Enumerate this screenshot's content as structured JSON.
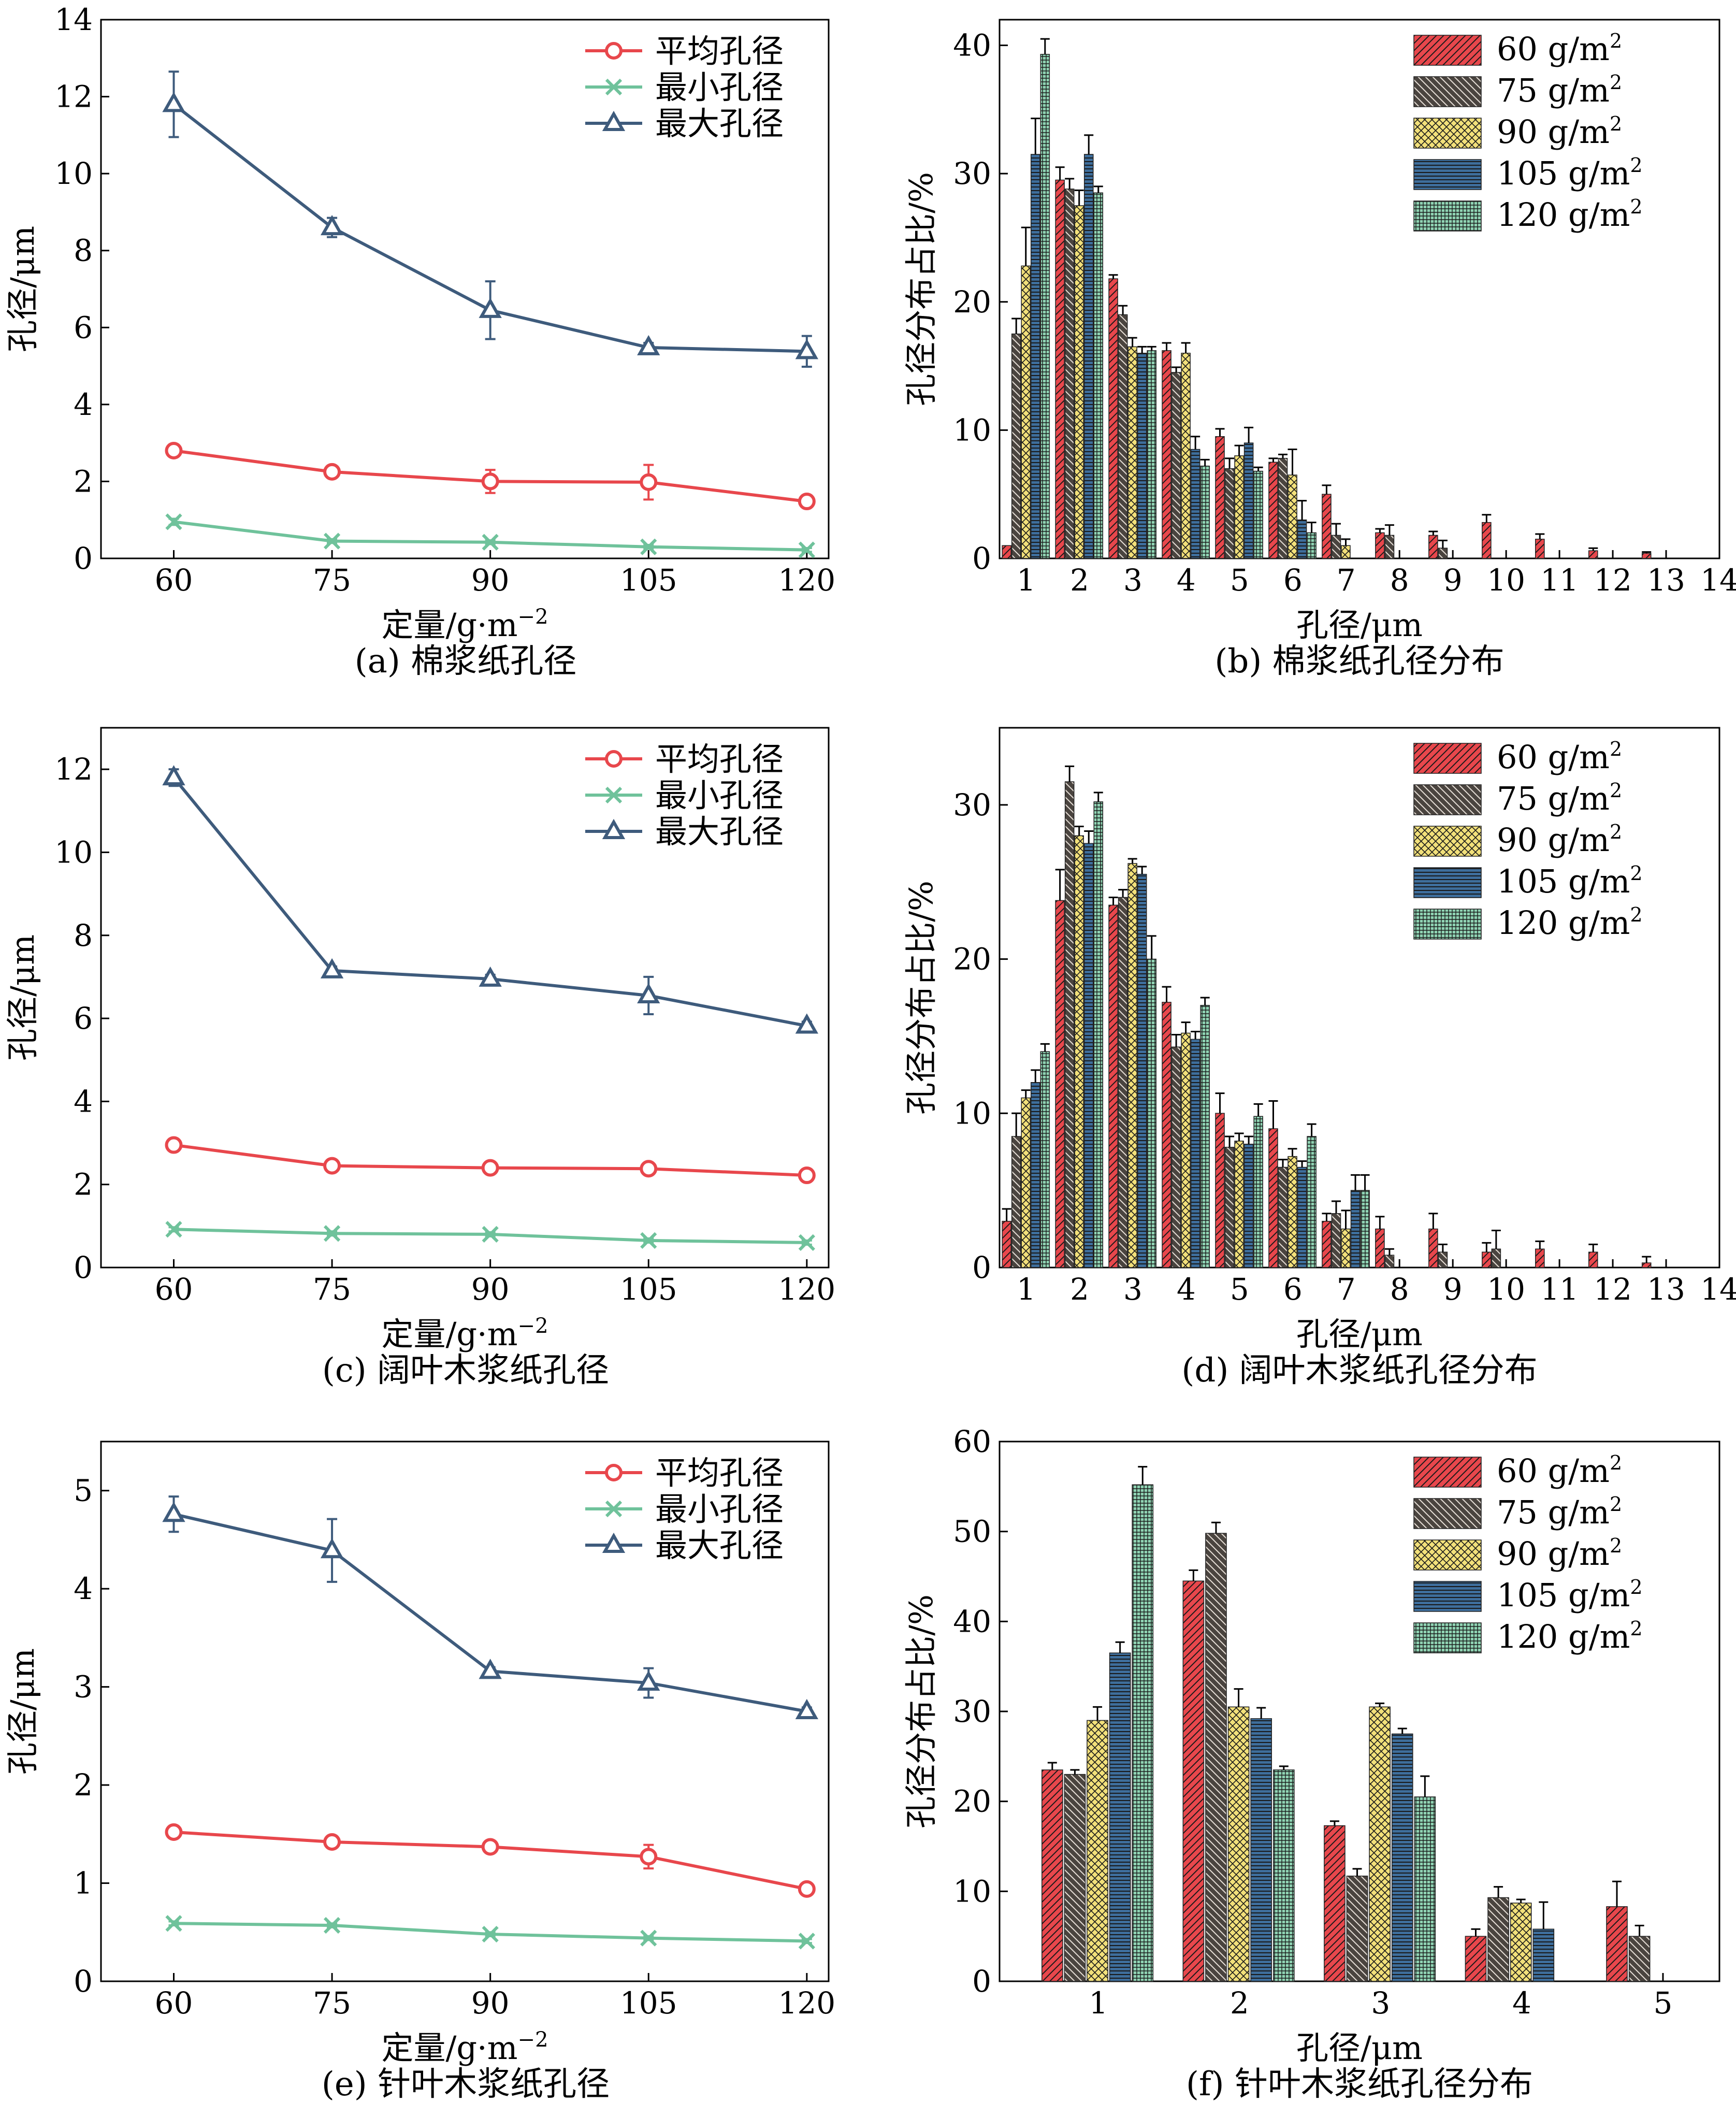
{
  "figure": {
    "colors": {
      "mean": "#e8474c",
      "min": "#6fc29b",
      "max": "#3e5b7c",
      "bar60": "#e8474c",
      "bar75": "#4a443f",
      "bar90": "#f2e07a",
      "bar105": "#3e6e9c",
      "bar120": "#8fd3b3"
    }
  },
  "chart_data": [
    {
      "id": "a",
      "type": "line",
      "caption": "(a) 棉浆纸孔径",
      "xlabel": "定量/g·m",
      "xlabel_sup": "−2",
      "ylabel": "孔径/μm",
      "categories": [
        "60",
        "75",
        "90",
        "105",
        "120"
      ],
      "ylim": [
        0,
        14
      ],
      "yticks": [
        "0",
        "2",
        "4",
        "6",
        "8",
        "10",
        "12",
        "14"
      ],
      "legend_position": "top-right",
      "series": [
        {
          "name": "平均孔径",
          "marker": "circle",
          "color": "#e8474c",
          "values": [
            2.8,
            2.25,
            2.0,
            1.98,
            1.48
          ],
          "errors": [
            0.05,
            0.08,
            0.3,
            0.45,
            0.08
          ]
        },
        {
          "name": "最小孔径",
          "marker": "x",
          "color": "#6fc29b",
          "values": [
            0.95,
            0.45,
            0.42,
            0.3,
            0.22
          ],
          "errors": [
            0.08,
            0.05,
            0.05,
            0.05,
            0.05
          ]
        },
        {
          "name": "最大孔径",
          "marker": "triangle",
          "color": "#3e5b7c",
          "values": [
            11.8,
            8.6,
            6.45,
            5.48,
            5.38
          ],
          "errors": [
            0.85,
            0.25,
            0.75,
            0.12,
            0.4
          ]
        }
      ]
    },
    {
      "id": "b",
      "type": "bar",
      "caption": "(b) 棉浆纸孔径分布",
      "xlabel": "孔径/μm",
      "ylabel": "孔径分布占比/%",
      "categories": [
        "1",
        "2",
        "3",
        "4",
        "5",
        "6",
        "7",
        "8",
        "9",
        "10",
        "11",
        "12",
        "13"
      ],
      "xticks": [
        "1",
        "2",
        "3",
        "4",
        "5",
        "6",
        "7",
        "8",
        "9",
        "10",
        "11",
        "12",
        "13",
        "14"
      ],
      "ylim": [
        0,
        42
      ],
      "yticks": [
        "0",
        "10",
        "20",
        "30",
        "40"
      ],
      "legend_position": "top-right",
      "series": [
        {
          "name": "60 g/m",
          "sup": "2",
          "color": "#e8474c",
          "pattern": "diag",
          "values": [
            1.0,
            29.5,
            21.8,
            16.2,
            9.5,
            7.5,
            5.0,
            2.0,
            1.8,
            2.8,
            1.5,
            0.6,
            0.4
          ],
          "errors": [
            0,
            1.0,
            0.3,
            0.6,
            0.6,
            0.3,
            0.7,
            0.3,
            0.3,
            0.6,
            0.4,
            0.2,
            0.1
          ]
        },
        {
          "name": "75 g/m",
          "sup": "2",
          "color": "#4a443f",
          "pattern": "backdiag",
          "values": [
            17.5,
            28.8,
            19.0,
            14.5,
            7.0,
            7.8,
            1.8,
            1.8,
            0.8,
            0,
            0,
            0,
            0
          ],
          "errors": [
            1.2,
            0.8,
            0.7,
            0.4,
            0.8,
            0.3,
            0.9,
            0.8,
            0.6,
            0,
            0,
            0,
            0
          ]
        },
        {
          "name": "90 g/m",
          "sup": "2",
          "color": "#f2e07a",
          "pattern": "cross",
          "values": [
            22.8,
            27.5,
            16.5,
            16.0,
            8.0,
            6.5,
            1.0,
            0,
            0,
            0,
            0,
            0,
            0
          ],
          "errors": [
            3.0,
            1.2,
            0.7,
            0.8,
            0.8,
            2.0,
            0.5,
            0,
            0,
            0,
            0,
            0,
            0
          ]
        },
        {
          "name": "105 g/m",
          "sup": "2",
          "color": "#3e6e9c",
          "pattern": "hstripe",
          "values": [
            31.5,
            31.5,
            16.0,
            8.5,
            9.0,
            3.0,
            0,
            0,
            0,
            0,
            0,
            0,
            0
          ],
          "errors": [
            2.8,
            1.5,
            0.5,
            1.0,
            1.2,
            1.5,
            0,
            0,
            0,
            0,
            0,
            0,
            0
          ]
        },
        {
          "name": "120 g/m",
          "sup": "2",
          "color": "#8fd3b3",
          "pattern": "grid",
          "values": [
            39.3,
            28.5,
            16.2,
            7.2,
            6.8,
            2.0,
            0,
            0,
            0,
            0,
            0,
            0,
            0
          ],
          "errors": [
            1.2,
            0.5,
            0.3,
            0.5,
            0.3,
            0.8,
            0,
            0,
            0,
            0,
            0,
            0,
            0
          ]
        }
      ]
    },
    {
      "id": "c",
      "type": "line",
      "caption": "(c) 阔叶木浆纸孔径",
      "xlabel": "定量/g·m",
      "xlabel_sup": "−2",
      "ylabel": "孔径/μm",
      "categories": [
        "60",
        "75",
        "90",
        "105",
        "120"
      ],
      "ylim": [
        0,
        13
      ],
      "yticks": [
        "0",
        "2",
        "4",
        "6",
        "8",
        "10",
        "12"
      ],
      "legend_position": "top-right",
      "series": [
        {
          "name": "平均孔径",
          "marker": "circle",
          "color": "#e8474c",
          "values": [
            2.95,
            2.45,
            2.4,
            2.38,
            2.22
          ],
          "errors": [
            0.05,
            0.05,
            0.05,
            0.05,
            0.05
          ]
        },
        {
          "name": "最小孔径",
          "marker": "x",
          "color": "#6fc29b",
          "values": [
            0.92,
            0.82,
            0.8,
            0.65,
            0.6
          ],
          "errors": [
            0.05,
            0.05,
            0.05,
            0.05,
            0.05
          ]
        },
        {
          "name": "最大孔径",
          "marker": "triangle",
          "color": "#3e5b7c",
          "values": [
            11.8,
            7.15,
            6.95,
            6.55,
            5.82
          ],
          "errors": [
            0.2,
            0.1,
            0.1,
            0.45,
            0.1
          ]
        }
      ]
    },
    {
      "id": "d",
      "type": "bar",
      "caption": "(d) 阔叶木浆纸孔径分布",
      "xlabel": "孔径/μm",
      "ylabel": "孔径分布占比/%",
      "categories": [
        "1",
        "2",
        "3",
        "4",
        "5",
        "6",
        "7",
        "8",
        "9",
        "10",
        "11",
        "12",
        "13"
      ],
      "xticks": [
        "1",
        "2",
        "3",
        "4",
        "5",
        "6",
        "7",
        "8",
        "9",
        "10",
        "11",
        "12",
        "13",
        "14"
      ],
      "ylim": [
        0,
        35
      ],
      "yticks": [
        "0",
        "10",
        "20",
        "30"
      ],
      "legend_position": "top-right",
      "series": [
        {
          "name": "60 g/m",
          "sup": "2",
          "color": "#e8474c",
          "pattern": "diag",
          "values": [
            3.0,
            23.8,
            23.5,
            17.2,
            10.0,
            9.0,
            3.0,
            2.5,
            2.5,
            1.0,
            1.2,
            1.0,
            0.3
          ],
          "errors": [
            0.8,
            2.0,
            0.5,
            1.0,
            1.3,
            1.8,
            0.5,
            0.8,
            1.0,
            0.6,
            0.5,
            0.5,
            0.4
          ]
        },
        {
          "name": "75 g/m",
          "sup": "2",
          "color": "#4a443f",
          "pattern": "backdiag",
          "values": [
            8.5,
            31.5,
            24.0,
            14.3,
            7.8,
            6.5,
            3.5,
            0.8,
            1.0,
            1.2,
            0,
            0,
            0
          ],
          "errors": [
            1.5,
            1.0,
            0.5,
            0.8,
            0.7,
            0.5,
            0.8,
            0.4,
            0.5,
            1.2,
            0,
            0,
            0
          ]
        },
        {
          "name": "90 g/m",
          "sup": "2",
          "color": "#f2e07a",
          "pattern": "cross",
          "values": [
            11.0,
            28.0,
            26.2,
            15.2,
            8.2,
            7.2,
            2.5,
            0,
            0,
            0,
            0,
            0,
            0
          ],
          "errors": [
            0.5,
            0.6,
            0.3,
            0.7,
            0.5,
            0.5,
            1.2,
            0,
            0,
            0,
            0,
            0,
            0
          ]
        },
        {
          "name": "105 g/m",
          "sup": "2",
          "color": "#3e6e9c",
          "pattern": "hstripe",
          "values": [
            12.0,
            27.5,
            25.5,
            14.8,
            8.0,
            6.5,
            5.0,
            0,
            0,
            0,
            0,
            0,
            0
          ],
          "errors": [
            0.8,
            0.8,
            0.5,
            0.5,
            0.5,
            0.4,
            1.0,
            0,
            0,
            0,
            0,
            0,
            0
          ]
        },
        {
          "name": "120 g/m",
          "sup": "2",
          "color": "#8fd3b3",
          "pattern": "grid",
          "values": [
            14.0,
            30.2,
            20.0,
            17.0,
            9.8,
            8.5,
            5.0,
            0,
            0,
            0,
            0,
            0,
            0
          ],
          "errors": [
            0.5,
            0.6,
            1.5,
            0.5,
            0.8,
            0.8,
            1.0,
            0,
            0,
            0,
            0,
            0,
            0
          ]
        }
      ]
    },
    {
      "id": "e",
      "type": "line",
      "caption": "(e) 针叶木浆纸孔径",
      "xlabel": "定量/g·m",
      "xlabel_sup": "−2",
      "ylabel": "孔径/μm",
      "categories": [
        "60",
        "75",
        "90",
        "105",
        "120"
      ],
      "ylim": [
        0,
        5.5
      ],
      "yticks": [
        "0",
        "1",
        "2",
        "3",
        "4",
        "5"
      ],
      "legend_position": "top-right",
      "series": [
        {
          "name": "平均孔径",
          "marker": "circle",
          "color": "#e8474c",
          "values": [
            1.52,
            1.42,
            1.37,
            1.27,
            0.94
          ],
          "errors": [
            0.02,
            0.06,
            0.06,
            0.12,
            0.03
          ]
        },
        {
          "name": "最小孔径",
          "marker": "x",
          "color": "#6fc29b",
          "values": [
            0.59,
            0.57,
            0.48,
            0.44,
            0.41
          ],
          "errors": [
            0.02,
            0.02,
            0.02,
            0.02,
            0.02
          ]
        },
        {
          "name": "最大孔径",
          "marker": "triangle",
          "color": "#3e5b7c",
          "values": [
            4.76,
            4.39,
            3.16,
            3.04,
            2.75
          ],
          "errors": [
            0.18,
            0.32,
            0.04,
            0.15,
            0.04
          ]
        }
      ]
    },
    {
      "id": "f",
      "type": "bar",
      "caption": "(f) 针叶木浆纸孔径分布",
      "xlabel": "孔径/μm",
      "ylabel": "孔径分布占比/%",
      "categories": [
        "1",
        "2",
        "3",
        "4",
        "5"
      ],
      "xticks": [
        "1",
        "2",
        "3",
        "4",
        "5"
      ],
      "ylim": [
        0,
        60
      ],
      "yticks": [
        "0",
        "10",
        "20",
        "30",
        "40",
        "50",
        "60"
      ],
      "legend_position": "top-right",
      "series": [
        {
          "name": "60 g/m",
          "sup": "2",
          "color": "#e8474c",
          "pattern": "diag",
          "values": [
            23.5,
            44.5,
            17.3,
            5.0,
            8.3
          ],
          "errors": [
            0.8,
            1.2,
            0.5,
            0.8,
            2.8
          ]
        },
        {
          "name": "75 g/m",
          "sup": "2",
          "color": "#4a443f",
          "pattern": "backdiag",
          "values": [
            23.0,
            49.8,
            11.7,
            9.3,
            5.0
          ],
          "errors": [
            0.5,
            1.2,
            0.8,
            1.2,
            1.2
          ]
        },
        {
          "name": "90 g/m",
          "sup": "2",
          "color": "#f2e07a",
          "pattern": "cross",
          "values": [
            29.0,
            30.5,
            30.5,
            8.7,
            0
          ],
          "errors": [
            1.5,
            2.0,
            0.4,
            0.4,
            0
          ]
        },
        {
          "name": "105 g/m",
          "sup": "2",
          "color": "#3e6e9c",
          "pattern": "hstripe",
          "values": [
            36.5,
            29.2,
            27.5,
            5.8,
            0
          ],
          "errors": [
            1.2,
            1.2,
            0.6,
            3.0,
            0
          ]
        },
        {
          "name": "120 g/m",
          "sup": "2",
          "color": "#8fd3b3",
          "pattern": "grid",
          "values": [
            55.2,
            23.5,
            20.5,
            0,
            0
          ],
          "errors": [
            2.0,
            0.4,
            2.3,
            0,
            0
          ]
        }
      ]
    }
  ]
}
